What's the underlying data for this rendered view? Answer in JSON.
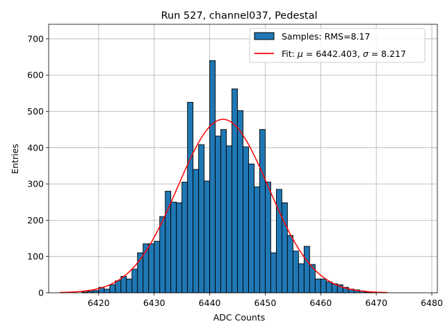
{
  "chart_data": {
    "type": "bar",
    "title": "Run 527, channel037, Pedestal",
    "xlabel": "ADC Counts",
    "ylabel": "Entries",
    "xlim": [
      6411,
      6481
    ],
    "ylim": [
      0,
      740
    ],
    "xticks": [
      6420,
      6430,
      6440,
      6450,
      6460,
      6470,
      6480
    ],
    "yticks": [
      0,
      100,
      200,
      300,
      400,
      500,
      600,
      700
    ],
    "grid": true,
    "legend_position": "top-right",
    "histogram": {
      "name": "Samples: RMS=8.17",
      "color": "#1f77b4",
      "edge_color": "#000000",
      "bin_width": 1,
      "bin_start": 6417,
      "counts": [
        2,
        4,
        6,
        15,
        10,
        22,
        33,
        45,
        38,
        65,
        110,
        135,
        135,
        142,
        210,
        280,
        250,
        248,
        305,
        525,
        340,
        408,
        308,
        640,
        432,
        450,
        405,
        562,
        502,
        402,
        355,
        292,
        450,
        305,
        110,
        285,
        248,
        158,
        115,
        80,
        128,
        78,
        38,
        38,
        30,
        25,
        22,
        15,
        10,
        8,
        5,
        2,
        1
      ]
    },
    "fit": {
      "name": "Fit: μ = 6442.403, σ = 8.217",
      "color": "#ff0000",
      "mu": 6442.403,
      "sigma": 8.217,
      "amplitude": 478,
      "x_range": [
        6413,
        6472
      ]
    }
  },
  "legend": {
    "samples_label": "Samples: RMS=8.17",
    "fit_label_prefix": "Fit: ",
    "fit_mu_symbol": "μ",
    "fit_mu_value": " = 6442.403, ",
    "fit_sigma_symbol": "σ",
    "fit_sigma_value": " = 8.217"
  }
}
